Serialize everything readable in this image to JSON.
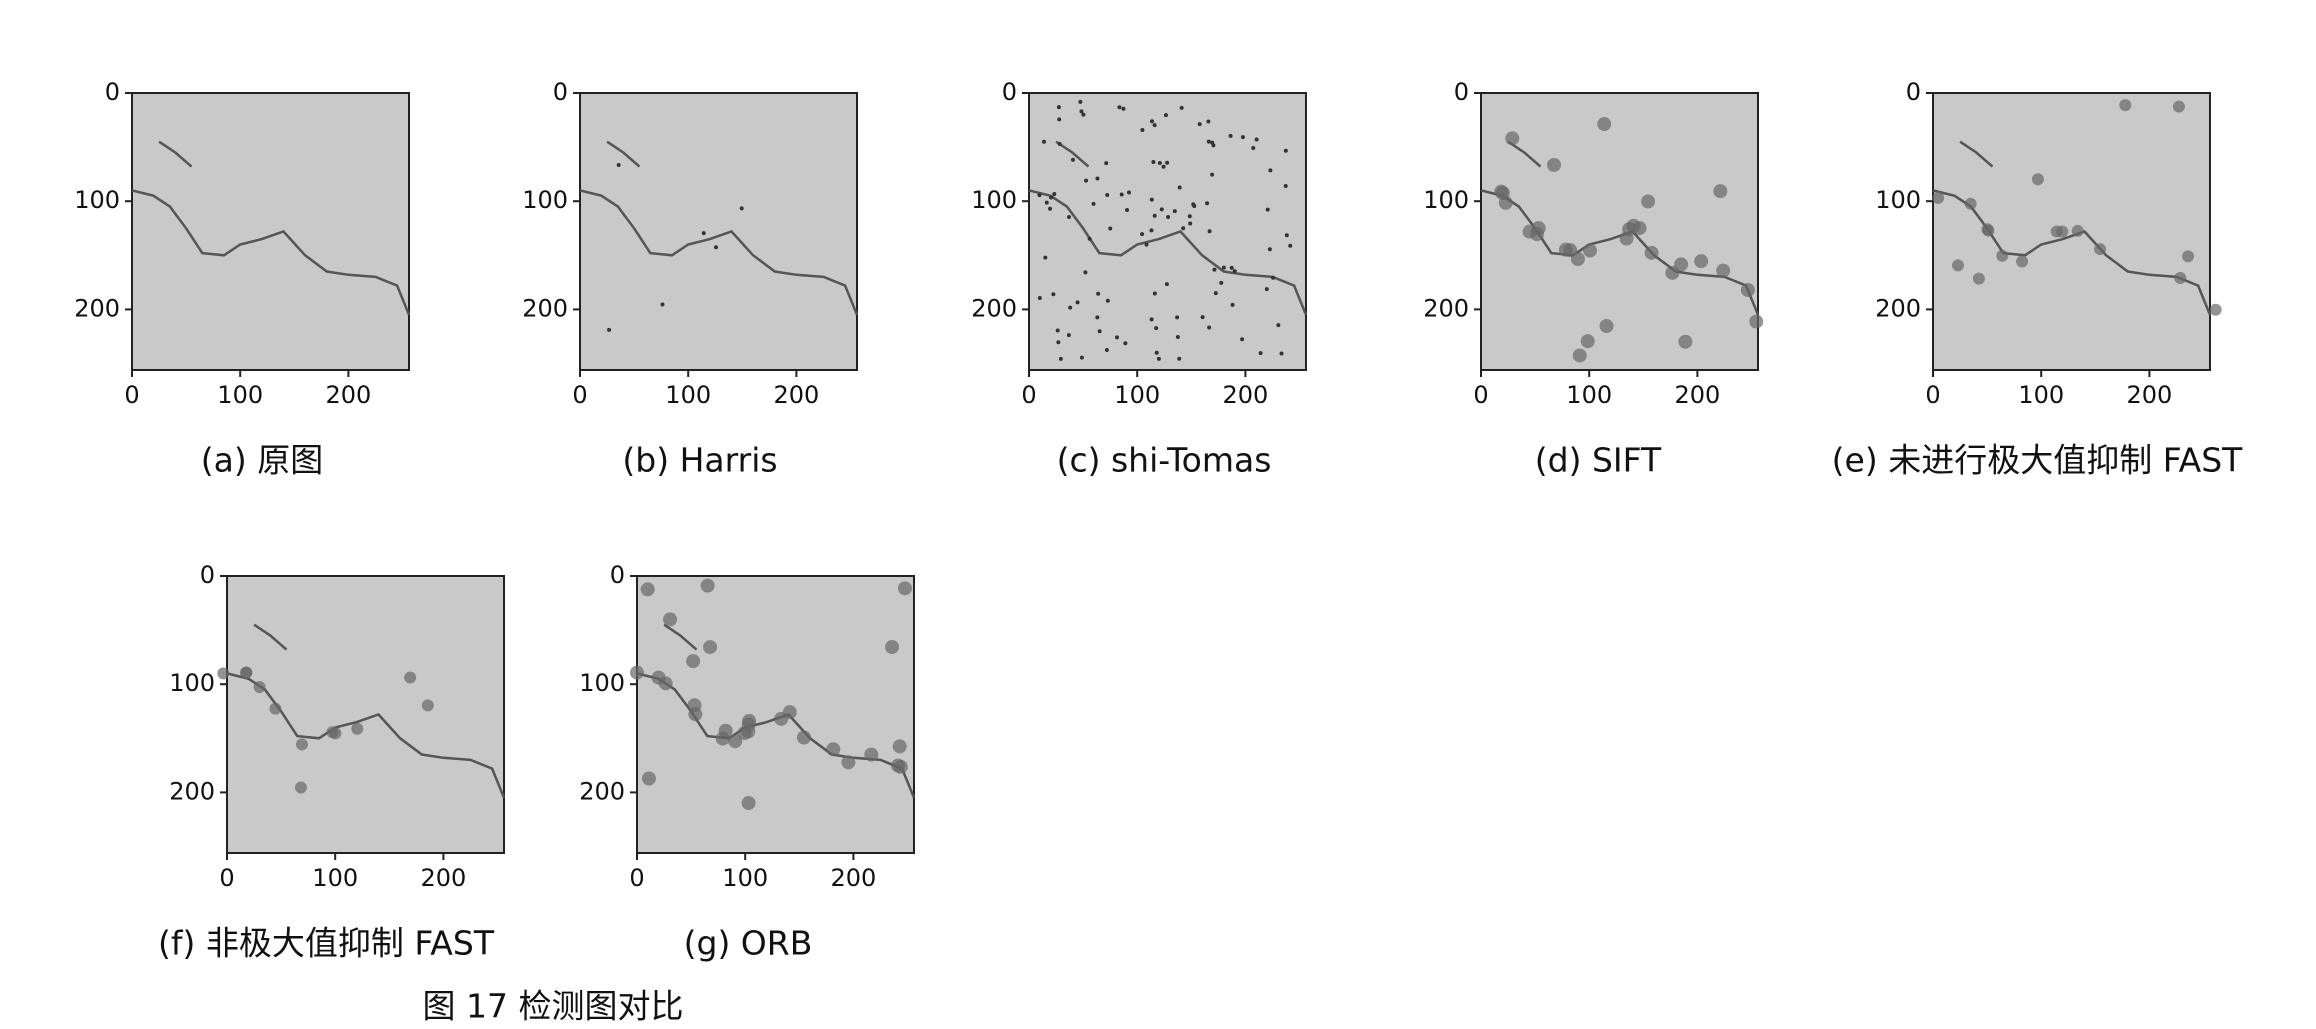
{
  "chart_data": [
    {
      "type": "image",
      "title": "(a) 原图",
      "xlim": [
        0,
        256
      ],
      "ylim": [
        0,
        256
      ],
      "xticks": [
        0,
        100,
        200
      ],
      "yticks": [
        0,
        100,
        200
      ]
    },
    {
      "type": "image",
      "title": "(b) Harris",
      "xlim": [
        0,
        256
      ],
      "ylim": [
        0,
        256
      ],
      "xticks": [
        0,
        100,
        200
      ],
      "yticks": [
        0,
        100,
        200
      ]
    },
    {
      "type": "image",
      "title": "(c) shi-Tomas",
      "xlim": [
        0,
        256
      ],
      "ylim": [
        0,
        256
      ],
      "xticks": [
        0,
        100,
        200
      ],
      "yticks": [
        0,
        100,
        200
      ]
    },
    {
      "type": "image",
      "title": "(d) SIFT",
      "xlim": [
        0,
        256
      ],
      "ylim": [
        0,
        256
      ],
      "xticks": [
        0,
        100,
        200
      ],
      "yticks": [
        0,
        100,
        200
      ]
    },
    {
      "type": "image",
      "title": "(e) 未进行极大值抑制 FAST",
      "xlim": [
        0,
        256
      ],
      "ylim": [
        0,
        256
      ],
      "xticks": [
        0,
        100,
        200
      ],
      "yticks": [
        0,
        100,
        200
      ]
    },
    {
      "type": "image",
      "title": "(f) 非极大值抑制 FAST",
      "xlim": [
        0,
        256
      ],
      "ylim": [
        0,
        256
      ],
      "xticks": [
        0,
        100,
        200
      ],
      "yticks": [
        0,
        100,
        200
      ]
    },
    {
      "type": "image",
      "title": "(g) ORB",
      "xlim": [
        0,
        256
      ],
      "ylim": [
        0,
        256
      ],
      "xticks": [
        0,
        100,
        200
      ],
      "yticks": [
        0,
        100,
        200
      ]
    }
  ],
  "figure_caption": "图 17  检测图对比"
}
